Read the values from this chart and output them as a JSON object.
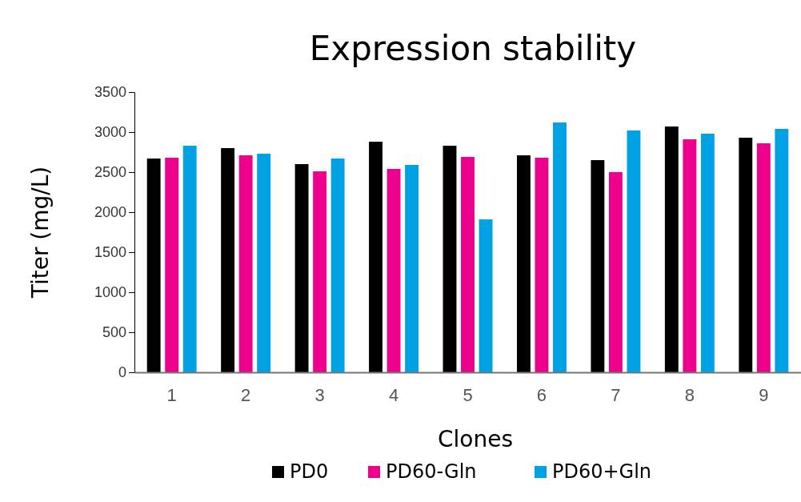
{
  "chart_data": {
    "type": "bar",
    "title": "Expression stability",
    "xlabel": "Clones",
    "ylabel": "Titer (mg/L)",
    "categories": [
      "1",
      "2",
      "3",
      "4",
      "5",
      "6",
      "7",
      "8",
      "9"
    ],
    "series": [
      {
        "name": "PD0",
        "color": "#000000",
        "values": [
          2670,
          2800,
          2600,
          2880,
          2830,
          2710,
          2650,
          3070,
          2930
        ]
      },
      {
        "name": "PD60-Gln",
        "color": "#ec008c",
        "values": [
          2680,
          2710,
          2510,
          2540,
          2690,
          2680,
          2500,
          2910,
          2860
        ]
      },
      {
        "name": "PD60+Gln",
        "color": "#00a2e3",
        "values": [
          2830,
          2730,
          2670,
          2590,
          1910,
          3120,
          3020,
          2980,
          3040
        ]
      }
    ],
    "ylim": [
      0,
      3500
    ],
    "yticks": [
      0,
      500,
      1000,
      1500,
      2000,
      2500,
      3000,
      3500
    ],
    "grid": false,
    "legend": "bottom"
  }
}
